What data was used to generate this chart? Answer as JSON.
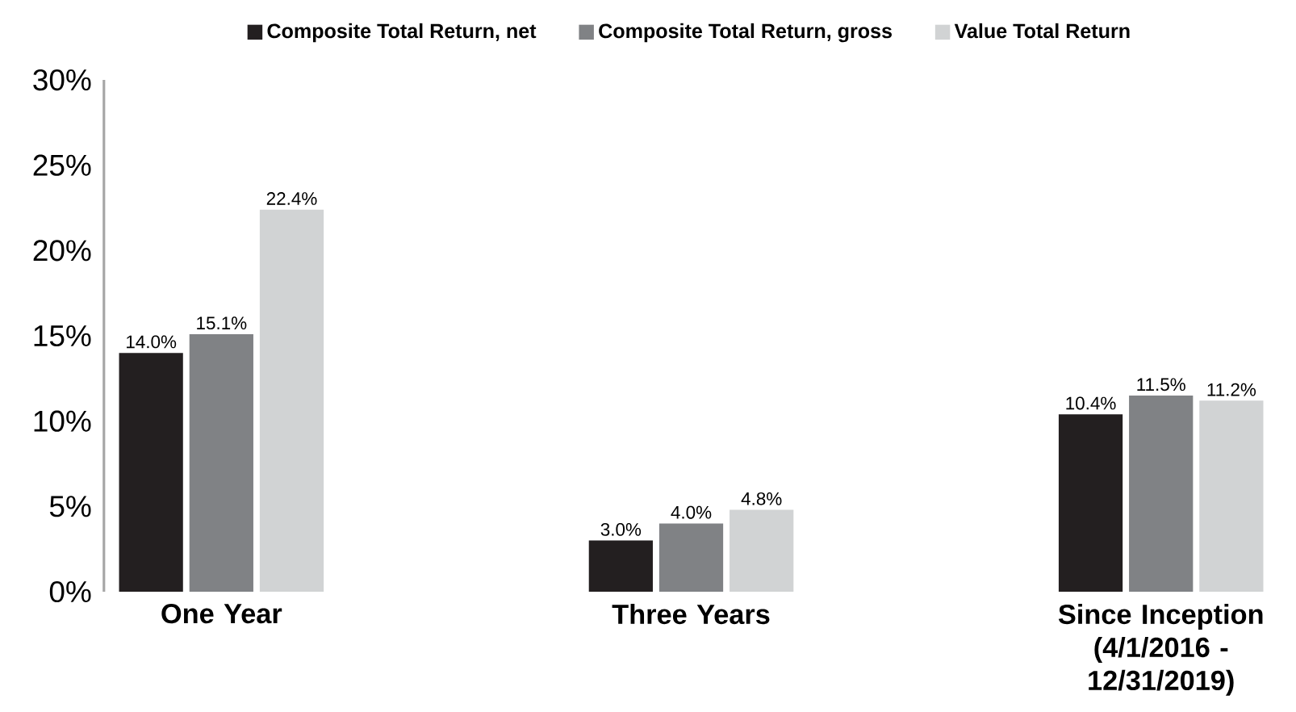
{
  "chart_data": {
    "type": "bar",
    "categories": [
      "One Year",
      "Three Years",
      "Since Inception (4/1/2016 - 12/31/2019)"
    ],
    "series": [
      {
        "name": "Composite Total Return, net",
        "color": "#231f20",
        "values": [
          14.0,
          3.0,
          10.4
        ],
        "value_labels": [
          "14.0%",
          "3.0%",
          "10.4%"
        ]
      },
      {
        "name": "Composite Total Return, gross",
        "color": "#808285",
        "values": [
          15.1,
          4.0,
          11.5
        ],
        "value_labels": [
          "15.1%",
          "4.0%",
          "11.5%"
        ]
      },
      {
        "name": "Value Total Return",
        "color": "#d1d3d4",
        "values": [
          22.4,
          4.8,
          11.2
        ],
        "value_labels": [
          "22.4%",
          "4.8%",
          "11.2%"
        ]
      }
    ],
    "ylim": [
      0,
      30
    ],
    "yticks": [
      {
        "value": 0,
        "label": "0%"
      },
      {
        "value": 5,
        "label": "5%"
      },
      {
        "value": 10,
        "label": "10%"
      },
      {
        "value": 15,
        "label": "15%"
      },
      {
        "value": 20,
        "label": "20%"
      },
      {
        "value": 25,
        "label": "25%"
      },
      {
        "value": 30,
        "label": "30%"
      }
    ],
    "grid": false,
    "legend": "top"
  }
}
